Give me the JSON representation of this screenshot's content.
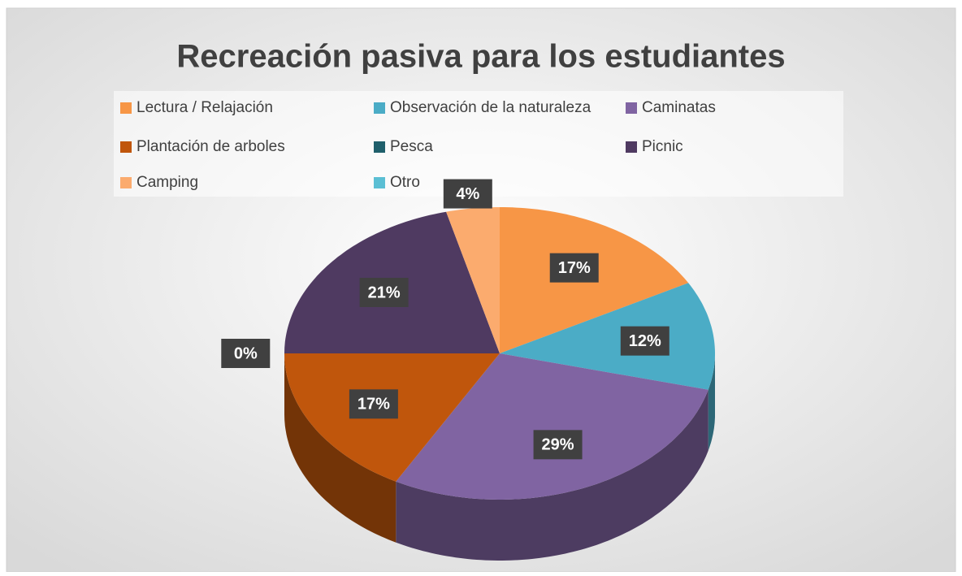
{
  "chart_data": {
    "type": "pie",
    "title": "Recreación pasiva para los estudiantes",
    "categories": [
      "Lectura / Relajación",
      "Observación de la naturaleza",
      "Caminatas",
      "Plantación de arboles",
      "Pesca",
      "Picnic",
      "Camping",
      "Otro"
    ],
    "values": [
      17,
      12,
      29,
      17,
      0,
      21,
      4,
      0
    ],
    "value_labels": [
      "17%",
      "12%",
      "29%",
      "17%",
      "0%",
      "21%",
      "4%",
      null
    ],
    "colors": [
      "#f79646",
      "#4bacc6",
      "#8064a2",
      "#c0560c",
      "#1f5f6b",
      "#4f3a61",
      "#fbab6e",
      "#5bbfd4"
    ],
    "legend": "top"
  }
}
